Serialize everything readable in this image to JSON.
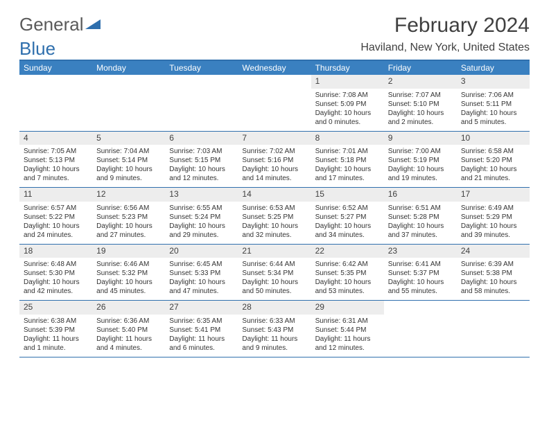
{
  "logo": {
    "text_gray": "General",
    "text_blue": "Blue"
  },
  "title": "February 2024",
  "location": "Haviland, New York, United States",
  "colors": {
    "header_bg": "#3a80c0",
    "border": "#2f6fad",
    "date_bg": "#ededed",
    "page_bg": "#ffffff",
    "text": "#333333"
  },
  "day_headers": [
    "Sunday",
    "Monday",
    "Tuesday",
    "Wednesday",
    "Thursday",
    "Friday",
    "Saturday"
  ],
  "weeks": [
    [
      null,
      null,
      null,
      null,
      {
        "n": "1",
        "sr": "7:08 AM",
        "ss": "5:09 PM",
        "dl": "10 hours and 0 minutes."
      },
      {
        "n": "2",
        "sr": "7:07 AM",
        "ss": "5:10 PM",
        "dl": "10 hours and 2 minutes."
      },
      {
        "n": "3",
        "sr": "7:06 AM",
        "ss": "5:11 PM",
        "dl": "10 hours and 5 minutes."
      }
    ],
    [
      {
        "n": "4",
        "sr": "7:05 AM",
        "ss": "5:13 PM",
        "dl": "10 hours and 7 minutes."
      },
      {
        "n": "5",
        "sr": "7:04 AM",
        "ss": "5:14 PM",
        "dl": "10 hours and 9 minutes."
      },
      {
        "n": "6",
        "sr": "7:03 AM",
        "ss": "5:15 PM",
        "dl": "10 hours and 12 minutes."
      },
      {
        "n": "7",
        "sr": "7:02 AM",
        "ss": "5:16 PM",
        "dl": "10 hours and 14 minutes."
      },
      {
        "n": "8",
        "sr": "7:01 AM",
        "ss": "5:18 PM",
        "dl": "10 hours and 17 minutes."
      },
      {
        "n": "9",
        "sr": "7:00 AM",
        "ss": "5:19 PM",
        "dl": "10 hours and 19 minutes."
      },
      {
        "n": "10",
        "sr": "6:58 AM",
        "ss": "5:20 PM",
        "dl": "10 hours and 21 minutes."
      }
    ],
    [
      {
        "n": "11",
        "sr": "6:57 AM",
        "ss": "5:22 PM",
        "dl": "10 hours and 24 minutes."
      },
      {
        "n": "12",
        "sr": "6:56 AM",
        "ss": "5:23 PM",
        "dl": "10 hours and 27 minutes."
      },
      {
        "n": "13",
        "sr": "6:55 AM",
        "ss": "5:24 PM",
        "dl": "10 hours and 29 minutes."
      },
      {
        "n": "14",
        "sr": "6:53 AM",
        "ss": "5:25 PM",
        "dl": "10 hours and 32 minutes."
      },
      {
        "n": "15",
        "sr": "6:52 AM",
        "ss": "5:27 PM",
        "dl": "10 hours and 34 minutes."
      },
      {
        "n": "16",
        "sr": "6:51 AM",
        "ss": "5:28 PM",
        "dl": "10 hours and 37 minutes."
      },
      {
        "n": "17",
        "sr": "6:49 AM",
        "ss": "5:29 PM",
        "dl": "10 hours and 39 minutes."
      }
    ],
    [
      {
        "n": "18",
        "sr": "6:48 AM",
        "ss": "5:30 PM",
        "dl": "10 hours and 42 minutes."
      },
      {
        "n": "19",
        "sr": "6:46 AM",
        "ss": "5:32 PM",
        "dl": "10 hours and 45 minutes."
      },
      {
        "n": "20",
        "sr": "6:45 AM",
        "ss": "5:33 PM",
        "dl": "10 hours and 47 minutes."
      },
      {
        "n": "21",
        "sr": "6:44 AM",
        "ss": "5:34 PM",
        "dl": "10 hours and 50 minutes."
      },
      {
        "n": "22",
        "sr": "6:42 AM",
        "ss": "5:35 PM",
        "dl": "10 hours and 53 minutes."
      },
      {
        "n": "23",
        "sr": "6:41 AM",
        "ss": "5:37 PM",
        "dl": "10 hours and 55 minutes."
      },
      {
        "n": "24",
        "sr": "6:39 AM",
        "ss": "5:38 PM",
        "dl": "10 hours and 58 minutes."
      }
    ],
    [
      {
        "n": "25",
        "sr": "6:38 AM",
        "ss": "5:39 PM",
        "dl": "11 hours and 1 minute."
      },
      {
        "n": "26",
        "sr": "6:36 AM",
        "ss": "5:40 PM",
        "dl": "11 hours and 4 minutes."
      },
      {
        "n": "27",
        "sr": "6:35 AM",
        "ss": "5:41 PM",
        "dl": "11 hours and 6 minutes."
      },
      {
        "n": "28",
        "sr": "6:33 AM",
        "ss": "5:43 PM",
        "dl": "11 hours and 9 minutes."
      },
      {
        "n": "29",
        "sr": "6:31 AM",
        "ss": "5:44 PM",
        "dl": "11 hours and 12 minutes."
      },
      null,
      null
    ]
  ],
  "labels": {
    "sunrise": "Sunrise: ",
    "sunset": "Sunset: ",
    "daylight": "Daylight: "
  }
}
